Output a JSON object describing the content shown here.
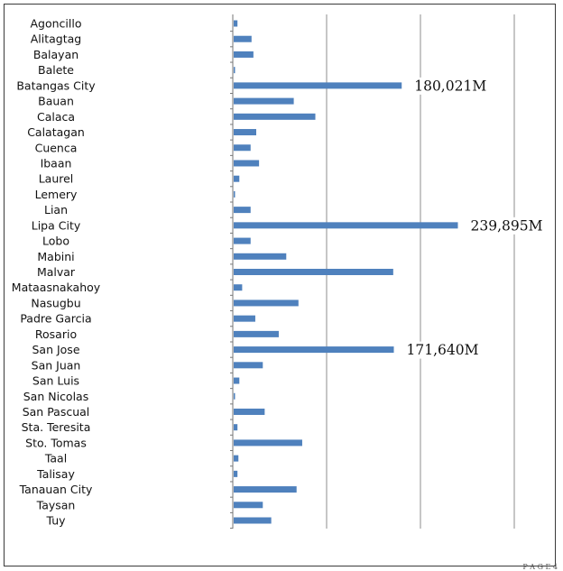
{
  "chart_data": {
    "type": "bar",
    "orientation": "horizontal",
    "categories": [
      "Agoncillo",
      "Alitagtag",
      "Balayan",
      "Balete",
      "Batangas City",
      "Bauan",
      "Calaca",
      "Calatagan",
      "Cuenca",
      "Ibaan",
      "Laurel",
      "Lemery",
      "Lian",
      "Lipa City",
      "Lobo",
      "Mabini",
      "Malvar",
      "Mataasnakahoy",
      "Nasugbu",
      "Padre Garcia",
      "Rosario",
      "San Jose",
      "San Juan",
      "San Luis",
      "San Nicolas",
      "San Pascual",
      "Sta. Teresita",
      "Sto. Tomas",
      "Taal",
      "Talisay",
      "Tanauan City",
      "Taysan",
      "Tuy"
    ],
    "values": [
      5000,
      20000,
      22000,
      2000,
      180021,
      65000,
      88000,
      25000,
      19000,
      28000,
      7000,
      2000,
      19000,
      239895,
      19000,
      57000,
      171000,
      10000,
      70000,
      24000,
      49000,
      171640,
      32000,
      7000,
      2000,
      34000,
      5000,
      74000,
      6000,
      5000,
      68000,
      32000,
      41000
    ],
    "data_labels": [
      {
        "category": "Batangas City",
        "text": "180,021M"
      },
      {
        "category": "Lipa City",
        "text": "239,895M"
      },
      {
        "category": "San Jose",
        "text": "171,640M"
      }
    ],
    "title": "",
    "xlabel": "",
    "ylabel": "",
    "xlim": [
      0,
      350000
    ],
    "grid": true,
    "legend": "none",
    "bar_color": "#4f81bd",
    "grid_color": "#8c8c8c"
  },
  "footer_text": "P A G E 4"
}
